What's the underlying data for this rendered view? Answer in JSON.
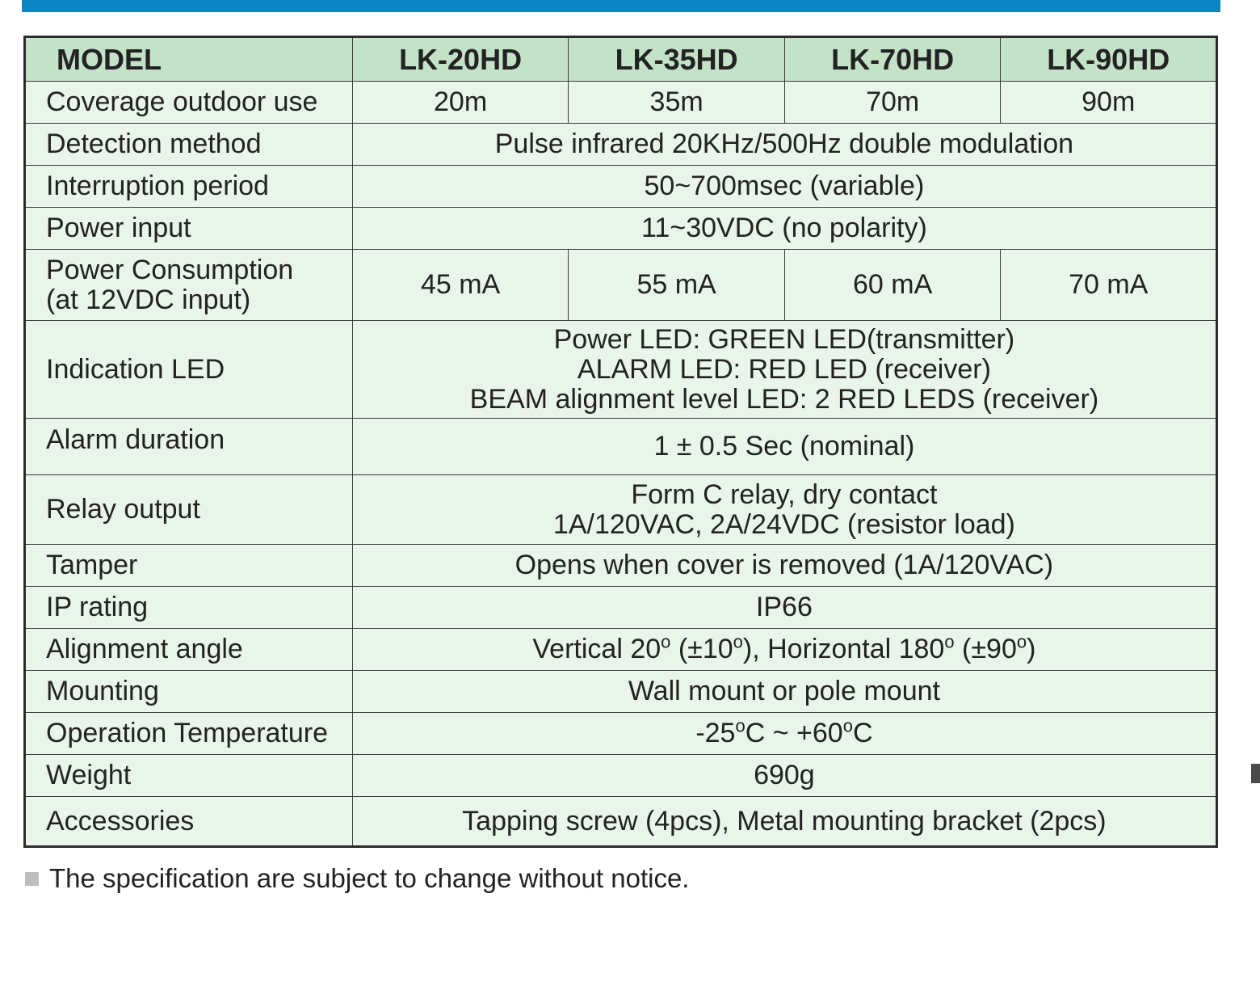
{
  "header": {
    "label": "MODEL",
    "models": [
      "LK-20HD",
      "LK-35HD",
      "LK-70HD",
      "LK-90HD"
    ]
  },
  "rows": {
    "coverage": {
      "label": "Coverage outdoor use",
      "values": [
        "20m",
        "35m",
        "70m",
        "90m"
      ]
    },
    "detection": {
      "label": "Detection method",
      "value": "Pulse infrared 20KHz/500Hz double modulation"
    },
    "interruption": {
      "label": "Interruption period",
      "value": "50~700msec (variable)"
    },
    "power_input": {
      "label": "Power input",
      "value": "11~30VDC (no polarity)"
    },
    "power_consumption": {
      "label_line1": "Power Consumption",
      "label_line2": "(at 12VDC input)",
      "values": [
        "45 mA",
        "55 mA",
        "60 mA",
        "70 mA"
      ]
    },
    "indication_led": {
      "label": "Indication LED",
      "lines": [
        "Power LED: GREEN LED(transmitter)",
        "ALARM LED: RED LED (receiver)",
        "BEAM alignment level LED: 2 RED LEDS (receiver)"
      ]
    },
    "alarm_duration": {
      "label": "Alarm duration",
      "value": "1 ± 0.5 Sec (nominal)"
    },
    "relay_output": {
      "label": "Relay output",
      "lines": [
        "Form C relay, dry contact",
        "1A/120VAC, 2A/24VDC (resistor load)"
      ]
    },
    "tamper": {
      "label": "Tamper",
      "value": "Opens when cover is removed (1A/120VAC)"
    },
    "ip_rating": {
      "label": "IP rating",
      "value": "IP66"
    },
    "alignment_angle": {
      "label": "Alignment angle",
      "part1": "Vertical 20",
      "deg": "o",
      "part2": " (±10",
      "part3": "), Horizontal 180",
      "part4": " (±90",
      "part5": ")"
    },
    "mounting": {
      "label": "Mounting",
      "value": "Wall mount or pole mount"
    },
    "operation_temperature": {
      "label": "Operation Temperature",
      "part1": "-25",
      "deg": "o",
      "part2": "C ~ +60",
      "part3": "C"
    },
    "weight": {
      "label": "Weight",
      "value": "690g"
    },
    "accessories": {
      "label": "Accessories",
      "value": "Tapping screw (4pcs), Metal mounting bracket (2pcs)"
    }
  },
  "footnote": "The specification are subject to change without notice.",
  "colors": {
    "top_bar": "#0a85c2",
    "header_bg": "#c3e2c8",
    "row_bg": "#e9f4ea",
    "border": "#2b2b2b"
  }
}
